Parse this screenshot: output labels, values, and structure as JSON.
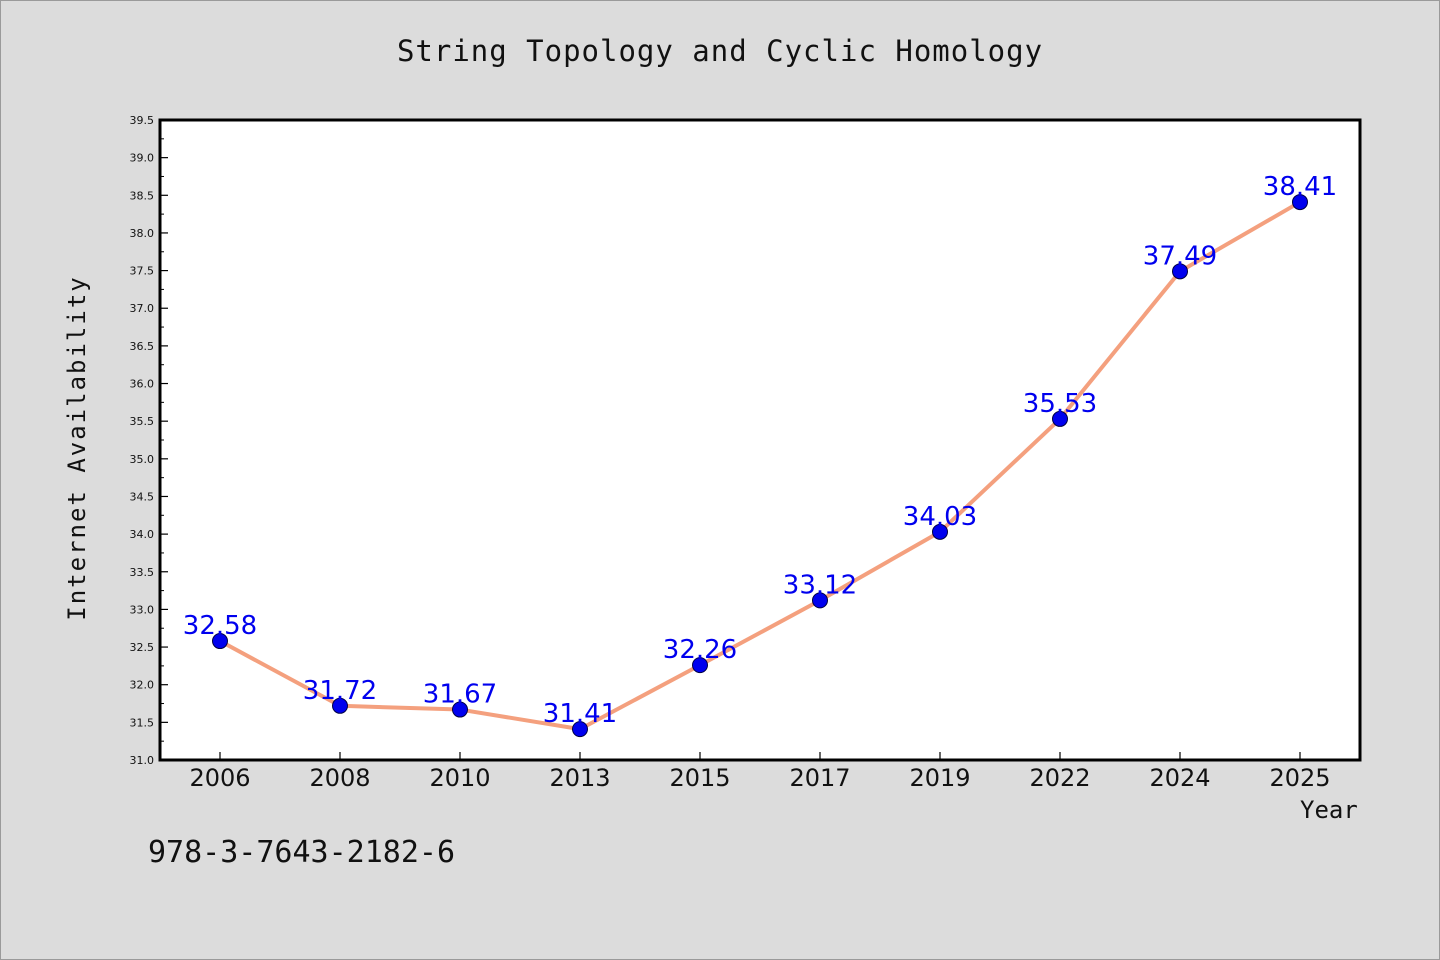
{
  "chart_data": {
    "type": "line",
    "title": "String Topology and Cyclic Homology",
    "xlabel": "Year",
    "ylabel": "Internet Availability",
    "categories": [
      "2006",
      "2008",
      "2010",
      "2013",
      "2015",
      "2017",
      "2019",
      "2022",
      "2024",
      "2025"
    ],
    "series": [
      {
        "values": [
          32.58,
          31.72,
          31.67,
          31.41,
          32.26,
          33.12,
          34.03,
          35.53,
          37.49,
          38.41
        ],
        "data_labels": [
          "32.58",
          "31.72",
          "31.67",
          "31.41",
          "32.26",
          "33.12",
          "34.03",
          "35.53",
          "37.49",
          "38.41"
        ],
        "line_color": "#f4a07e",
        "marker_color": "#0000ee",
        "label_color": "#0000ee"
      }
    ],
    "ylim": [
      31.0,
      39.5
    ],
    "yticks": [
      "31.0",
      "31.5",
      "32.0",
      "32.5",
      "33.0",
      "33.5",
      "34.0",
      "34.5",
      "35.0",
      "35.5",
      "36.0",
      "36.5",
      "37.0",
      "37.5",
      "38.0",
      "38.5",
      "39.0",
      "39.5"
    ],
    "grid": false,
    "legend": "none"
  },
  "footer": {
    "isbn": "978-3-7643-2182-6"
  },
  "colors": {
    "background": "#dcdcdc",
    "plot_area": "#ffffff",
    "axis": "#000000"
  }
}
